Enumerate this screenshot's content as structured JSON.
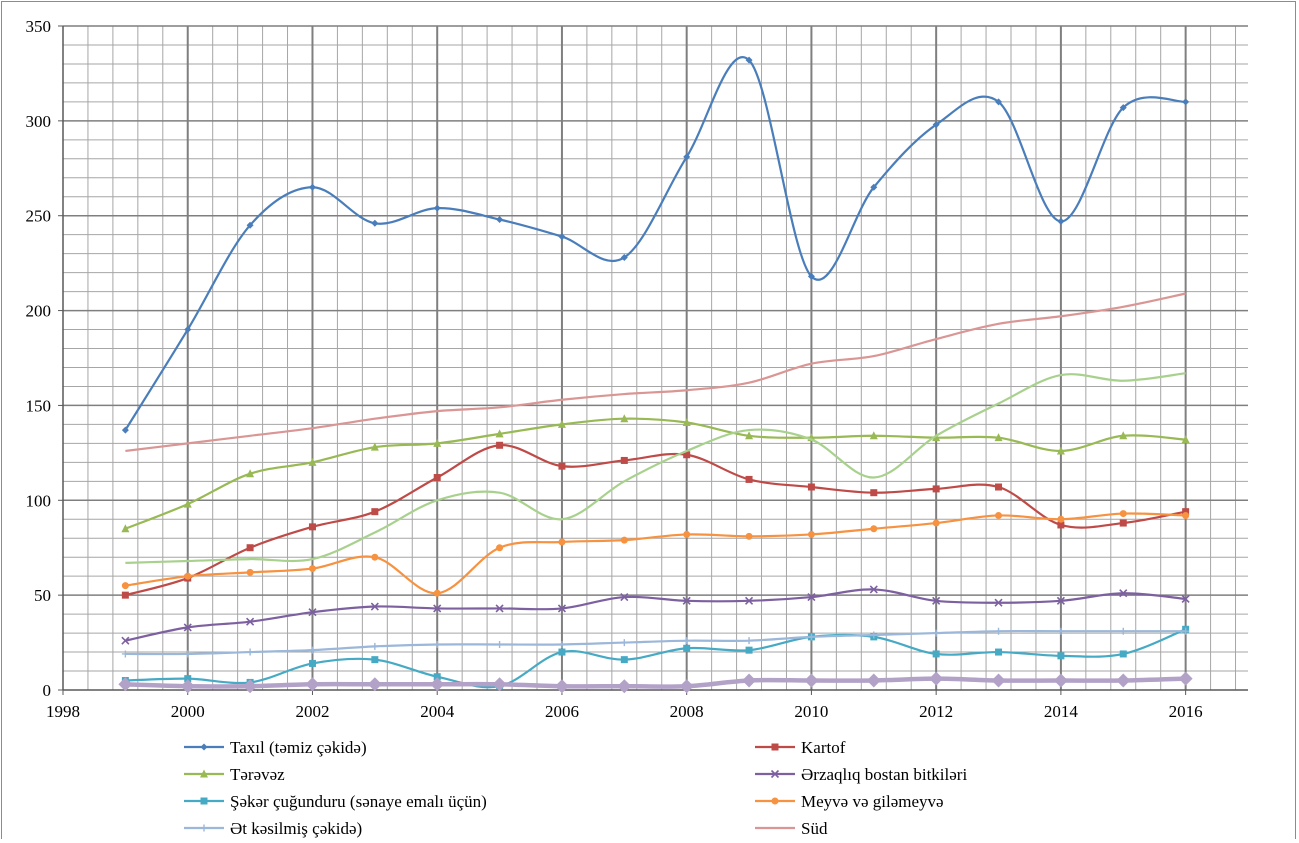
{
  "chart_data": {
    "type": "line",
    "title": "",
    "xlabel": "",
    "ylabel": "",
    "xlim": [
      1998,
      2017
    ],
    "ylim": [
      0,
      350
    ],
    "x_ticks": [
      1998,
      2000,
      2002,
      2004,
      2006,
      2008,
      2010,
      2012,
      2014,
      2016
    ],
    "y_ticks": [
      0,
      50,
      100,
      150,
      200,
      250,
      300,
      350
    ],
    "grid": true,
    "legend_position": "bottom",
    "x": [
      1999,
      2000,
      2001,
      2002,
      2003,
      2004,
      2005,
      2006,
      2007,
      2008,
      2009,
      2010,
      2011,
      2012,
      2013,
      2014,
      2015,
      2016
    ],
    "series": [
      {
        "name": "Taxıl (təmiz çəkidə)",
        "color": "#4a7ebb",
        "marker": "diamond",
        "values": [
          137,
          190,
          245,
          265,
          246,
          254,
          248,
          239,
          228,
          281,
          332,
          218,
          265,
          298,
          310,
          247,
          307,
          310
        ]
      },
      {
        "name": "Kartof",
        "color": "#be4b48",
        "marker": "square",
        "values": [
          50,
          59,
          75,
          86,
          94,
          112,
          129,
          118,
          121,
          124,
          111,
          107,
          104,
          106,
          107,
          87,
          88,
          94
        ]
      },
      {
        "name": "Tərəvəz",
        "color": "#98b954",
        "marker": "triangle",
        "values": [
          85,
          98,
          114,
          120,
          128,
          130,
          135,
          140,
          143,
          141,
          134,
          133,
          134,
          133,
          133,
          126,
          134,
          132
        ]
      },
      {
        "name": "Ərzaqlıq bostan bitkiləri",
        "color": "#7d60a0",
        "marker": "x",
        "values": [
          26,
          33,
          36,
          41,
          44,
          43,
          43,
          43,
          49,
          47,
          47,
          49,
          53,
          47,
          46,
          47,
          51,
          48
        ]
      },
      {
        "name": "Şəkər çuğunduru  (sənaye emalı üçün)",
        "color": "#46aac5",
        "marker": "square",
        "values": [
          5,
          6,
          4,
          14,
          16,
          7,
          2,
          20,
          16,
          22,
          21,
          28,
          28,
          19,
          20,
          18,
          19,
          32
        ]
      },
      {
        "name": "Meyvə və giləmeyvə",
        "color": "#f69240",
        "marker": "circle",
        "values": [
          55,
          60,
          62,
          64,
          70,
          51,
          75,
          78,
          79,
          82,
          81,
          82,
          85,
          88,
          92,
          90,
          93,
          92
        ]
      },
      {
        "name": "Ət kəsilmiş çəkidə)",
        "color": "#9bb7d9",
        "marker": "plus",
        "values": [
          19,
          19,
          20,
          21,
          23,
          24,
          24,
          24,
          25,
          26,
          26,
          28,
          29,
          30,
          31,
          31,
          31,
          31
        ]
      },
      {
        "name": "Süd",
        "color": "#d99694",
        "marker": "none",
        "values": [
          126,
          130,
          134,
          138,
          143,
          147,
          149,
          153,
          156,
          158,
          162,
          172,
          176,
          185,
          193,
          197,
          202,
          209
        ]
      },
      {
        "name": "",
        "color": "#a9d18e",
        "marker": "none",
        "values": [
          67,
          68,
          69,
          69,
          83,
          100,
          104,
          90,
          110,
          126,
          137,
          132,
          112,
          134,
          151,
          166,
          163,
          167
        ]
      },
      {
        "name": "",
        "color": "#b3a2c7",
        "marker": "diamond",
        "thick": true,
        "values": [
          3,
          2,
          2,
          3,
          3,
          3,
          3,
          2,
          2,
          2,
          5,
          5,
          5,
          6,
          5,
          5,
          5,
          6
        ]
      }
    ]
  }
}
